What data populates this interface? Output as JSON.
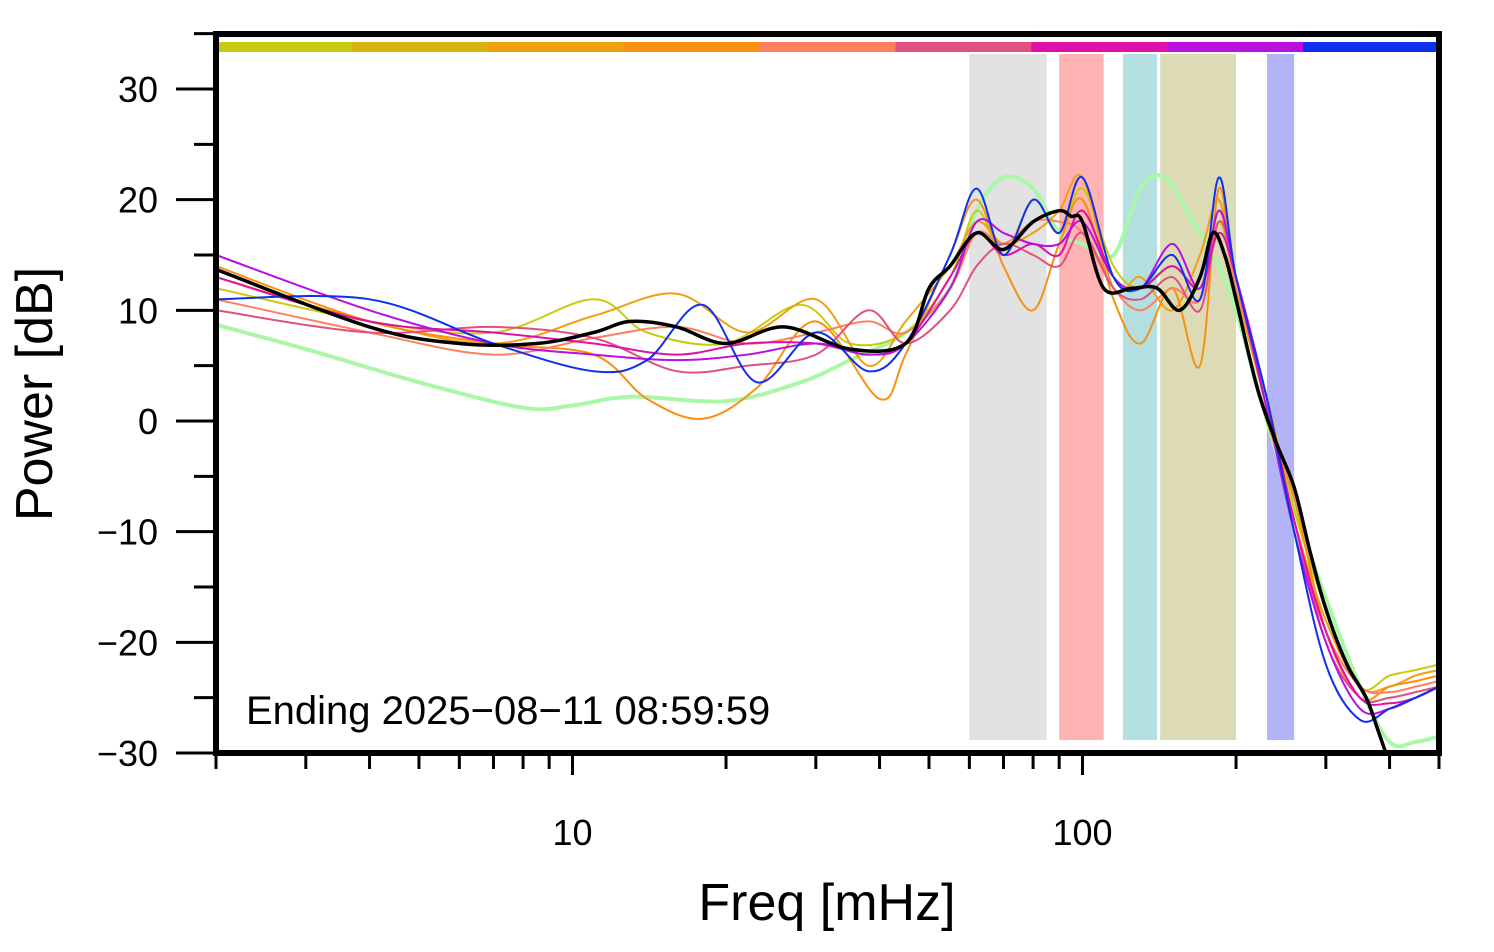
{
  "chart_data": {
    "type": "line",
    "title": "",
    "xlabel": "Freq [mHz]",
    "ylabel": "Power [dB]",
    "xscale": "log",
    "xlim": [
      2,
      500
    ],
    "ylim": [
      -30,
      35
    ],
    "grid": false,
    "annotation": "Ending 2025−08−11 08:59:59",
    "x_ticks": [
      10,
      100
    ],
    "x_tick_labels": [
      "10",
      "100"
    ],
    "y_ticks": [
      30,
      20,
      10,
      0,
      -10,
      -20,
      -30
    ],
    "y_tick_labels": [
      "30",
      "20",
      "10",
      "0",
      "−10",
      "−20",
      "−30"
    ],
    "bands": [
      {
        "from": 60,
        "to": 85,
        "color": "#e2e2e2"
      },
      {
        "from": 90,
        "to": 110,
        "color": "#ffb3b3"
      },
      {
        "from": 120,
        "to": 140,
        "color": "#b3dfe0"
      },
      {
        "from": 142,
        "to": 200,
        "color": "#dcdbb6"
      },
      {
        "from": 230,
        "to": 260,
        "color": "#b3b3f7"
      }
    ],
    "color_bar": [
      "#c8cc10",
      "#d8b410",
      "#f0a010",
      "#f89010",
      "#ff8060",
      "#e05080",
      "#dd10a8",
      "#b810e0",
      "#1030f0"
    ],
    "series": [
      {
        "color": "#a8f8a8",
        "width": 4,
        "points": [
          [
            2,
            8.7
          ],
          [
            3,
            6.5
          ],
          [
            5,
            3.5
          ],
          [
            8,
            1.2
          ],
          [
            10,
            1.4
          ],
          [
            13,
            2.2
          ],
          [
            20,
            1.8
          ],
          [
            28,
            3.5
          ],
          [
            35,
            5.5
          ],
          [
            45,
            8
          ],
          [
            55,
            12
          ],
          [
            62,
            19
          ],
          [
            70,
            22
          ],
          [
            80,
            21
          ],
          [
            90,
            17
          ],
          [
            100,
            16
          ],
          [
            115,
            15
          ],
          [
            130,
            21
          ],
          [
            145,
            22
          ],
          [
            165,
            18
          ],
          [
            185,
            14
          ],
          [
            200,
            10
          ],
          [
            230,
            0
          ],
          [
            260,
            -8
          ],
          [
            300,
            -16
          ],
          [
            350,
            -24
          ],
          [
            400,
            -29
          ],
          [
            450,
            -29
          ],
          [
            500,
            -28.5
          ]
        ]
      },
      {
        "color": "#c8cc10",
        "width": 2,
        "points": [
          [
            2,
            12
          ],
          [
            4,
            9
          ],
          [
            7,
            8
          ],
          [
            11,
            11
          ],
          [
            14,
            8
          ],
          [
            20,
            7
          ],
          [
            28,
            10.5
          ],
          [
            35,
            7
          ],
          [
            45,
            8
          ],
          [
            55,
            13
          ],
          [
            62,
            19
          ],
          [
            70,
            15
          ],
          [
            80,
            20
          ],
          [
            90,
            17
          ],
          [
            100,
            21
          ],
          [
            115,
            14
          ],
          [
            130,
            12
          ],
          [
            150,
            14
          ],
          [
            170,
            12
          ],
          [
            185,
            18
          ],
          [
            200,
            12
          ],
          [
            230,
            2
          ],
          [
            260,
            -8
          ],
          [
            300,
            -17
          ],
          [
            350,
            -24
          ],
          [
            400,
            -23
          ],
          [
            450,
            -22.5
          ],
          [
            500,
            -22
          ]
        ]
      },
      {
        "color": "#f0a010",
        "width": 2,
        "points": [
          [
            2,
            13
          ],
          [
            4,
            9
          ],
          [
            7,
            7
          ],
          [
            11,
            9.5
          ],
          [
            16,
            11.5
          ],
          [
            22,
            8
          ],
          [
            30,
            11
          ],
          [
            38,
            5
          ],
          [
            45,
            9
          ],
          [
            55,
            14
          ],
          [
            62,
            18
          ],
          [
            70,
            16
          ],
          [
            80,
            17
          ],
          [
            90,
            19
          ],
          [
            100,
            22
          ],
          [
            115,
            12
          ],
          [
            130,
            13
          ],
          [
            150,
            10
          ],
          [
            170,
            15
          ],
          [
            185,
            20
          ],
          [
            200,
            12
          ],
          [
            230,
            1
          ],
          [
            260,
            -9
          ],
          [
            300,
            -18
          ],
          [
            350,
            -24
          ],
          [
            400,
            -24
          ],
          [
            450,
            -23
          ],
          [
            500,
            -22.5
          ]
        ]
      },
      {
        "color": "#f89010",
        "width": 2,
        "points": [
          [
            2,
            14
          ],
          [
            4,
            9
          ],
          [
            7,
            7
          ],
          [
            11,
            6
          ],
          [
            14,
            2
          ],
          [
            18,
            0.2
          ],
          [
            23,
            3
          ],
          [
            30,
            9
          ],
          [
            40,
            2
          ],
          [
            45,
            6
          ],
          [
            55,
            15
          ],
          [
            62,
            20
          ],
          [
            70,
            14
          ],
          [
            80,
            10
          ],
          [
            90,
            16
          ],
          [
            100,
            20
          ],
          [
            115,
            11
          ],
          [
            130,
            7
          ],
          [
            150,
            12
          ],
          [
            170,
            5
          ],
          [
            185,
            21
          ],
          [
            200,
            11
          ],
          [
            230,
            0
          ],
          [
            260,
            -7
          ],
          [
            300,
            -19
          ],
          [
            350,
            -25
          ],
          [
            400,
            -24
          ],
          [
            450,
            -23.5
          ],
          [
            500,
            -23
          ]
        ]
      },
      {
        "color": "#ff8060",
        "width": 2,
        "points": [
          [
            2,
            11
          ],
          [
            4,
            8
          ],
          [
            7,
            6
          ],
          [
            11,
            7.5
          ],
          [
            16,
            8.5
          ],
          [
            22,
            7
          ],
          [
            30,
            8
          ],
          [
            38,
            9
          ],
          [
            45,
            8
          ],
          [
            55,
            12
          ],
          [
            62,
            17
          ],
          [
            70,
            16
          ],
          [
            80,
            18
          ],
          [
            90,
            18
          ],
          [
            100,
            17
          ],
          [
            115,
            12
          ],
          [
            130,
            10
          ],
          [
            150,
            12
          ],
          [
            170,
            11
          ],
          [
            185,
            19
          ],
          [
            200,
            12
          ],
          [
            230,
            2
          ],
          [
            260,
            -10
          ],
          [
            300,
            -19
          ],
          [
            350,
            -24
          ],
          [
            400,
            -24.5
          ],
          [
            450,
            -24
          ],
          [
            500,
            -23.5
          ]
        ]
      },
      {
        "color": "#e05080",
        "width": 2,
        "points": [
          [
            2,
            10
          ],
          [
            4,
            8
          ],
          [
            7,
            8.5
          ],
          [
            11,
            7.5
          ],
          [
            16,
            4.5
          ],
          [
            22,
            5
          ],
          [
            30,
            6
          ],
          [
            38,
            10
          ],
          [
            45,
            7
          ],
          [
            55,
            10
          ],
          [
            62,
            14
          ],
          [
            70,
            16
          ],
          [
            80,
            15
          ],
          [
            90,
            14
          ],
          [
            100,
            17
          ],
          [
            115,
            12
          ],
          [
            130,
            11
          ],
          [
            150,
            13
          ],
          [
            170,
            10
          ],
          [
            185,
            18
          ],
          [
            200,
            13
          ],
          [
            230,
            1
          ],
          [
            260,
            -9
          ],
          [
            300,
            -20
          ],
          [
            350,
            -25
          ],
          [
            400,
            -25
          ],
          [
            450,
            -24.5
          ],
          [
            500,
            -24
          ]
        ]
      },
      {
        "color": "#dd10a8",
        "width": 2,
        "points": [
          [
            2,
            13
          ],
          [
            4,
            9
          ],
          [
            7,
            8
          ],
          [
            11,
            7
          ],
          [
            16,
            6
          ],
          [
            22,
            7
          ],
          [
            30,
            7
          ],
          [
            38,
            6
          ],
          [
            45,
            7
          ],
          [
            55,
            13
          ],
          [
            62,
            17
          ],
          [
            70,
            15
          ],
          [
            80,
            16
          ],
          [
            90,
            15
          ],
          [
            100,
            19
          ],
          [
            115,
            13
          ],
          [
            130,
            12
          ],
          [
            150,
            14
          ],
          [
            170,
            12
          ],
          [
            185,
            17
          ],
          [
            200,
            13
          ],
          [
            230,
            2
          ],
          [
            260,
            -9
          ],
          [
            300,
            -19
          ],
          [
            350,
            -25
          ],
          [
            400,
            -25.5
          ],
          [
            450,
            -25
          ],
          [
            500,
            -24
          ]
        ]
      },
      {
        "color": "#b810e0",
        "width": 2,
        "points": [
          [
            2,
            15
          ],
          [
            4,
            10
          ],
          [
            7,
            7
          ],
          [
            11,
            6
          ],
          [
            16,
            5.5
          ],
          [
            22,
            6
          ],
          [
            30,
            7
          ],
          [
            38,
            6
          ],
          [
            45,
            7
          ],
          [
            55,
            12
          ],
          [
            62,
            18
          ],
          [
            70,
            17
          ],
          [
            80,
            16
          ],
          [
            90,
            16
          ],
          [
            100,
            18
          ],
          [
            115,
            13
          ],
          [
            130,
            12
          ],
          [
            150,
            16
          ],
          [
            170,
            12
          ],
          [
            185,
            19
          ],
          [
            200,
            13
          ],
          [
            230,
            1
          ],
          [
            260,
            -10
          ],
          [
            300,
            -20
          ],
          [
            350,
            -26
          ],
          [
            400,
            -26
          ],
          [
            450,
            -25
          ],
          [
            500,
            -24
          ]
        ]
      },
      {
        "color": "#1030f0",
        "width": 2,
        "points": [
          [
            2,
            11
          ],
          [
            4,
            11
          ],
          [
            7,
            7
          ],
          [
            11,
            4.5
          ],
          [
            14,
            5.5
          ],
          [
            18,
            10.5
          ],
          [
            23,
            3.5
          ],
          [
            30,
            8
          ],
          [
            38,
            4.5
          ],
          [
            45,
            7
          ],
          [
            55,
            15
          ],
          [
            62,
            21
          ],
          [
            70,
            15
          ],
          [
            80,
            20
          ],
          [
            90,
            17
          ],
          [
            100,
            22
          ],
          [
            115,
            13
          ],
          [
            130,
            12
          ],
          [
            150,
            15
          ],
          [
            170,
            11
          ],
          [
            185,
            22
          ],
          [
            200,
            13
          ],
          [
            230,
            2
          ],
          [
            260,
            -10
          ],
          [
            300,
            -22
          ],
          [
            350,
            -27
          ],
          [
            400,
            -26
          ],
          [
            450,
            -25
          ],
          [
            500,
            -24
          ]
        ]
      },
      {
        "color": "#000000",
        "width": 3.5,
        "points": [
          [
            2,
            13.7
          ],
          [
            4,
            8.5
          ],
          [
            6,
            7
          ],
          [
            8.5,
            7
          ],
          [
            11,
            8
          ],
          [
            13,
            9
          ],
          [
            16,
            8.5
          ],
          [
            20,
            7
          ],
          [
            26,
            8.5
          ],
          [
            35,
            6.5
          ],
          [
            45,
            7
          ],
          [
            50,
            12
          ],
          [
            55,
            14
          ],
          [
            62,
            17
          ],
          [
            70,
            15.5
          ],
          [
            80,
            18
          ],
          [
            90,
            19
          ],
          [
            95,
            18.5
          ],
          [
            100,
            18
          ],
          [
            110,
            12
          ],
          [
            125,
            12
          ],
          [
            140,
            12
          ],
          [
            155,
            10
          ],
          [
            170,
            13
          ],
          [
            180,
            17
          ],
          [
            190,
            15
          ],
          [
            200,
            11
          ],
          [
            220,
            3
          ],
          [
            240,
            -2
          ],
          [
            260,
            -6
          ],
          [
            280,
            -12
          ],
          [
            300,
            -17
          ],
          [
            330,
            -22
          ],
          [
            360,
            -25
          ],
          [
            380,
            -28
          ],
          [
            400,
            -31
          ]
        ]
      }
    ]
  }
}
